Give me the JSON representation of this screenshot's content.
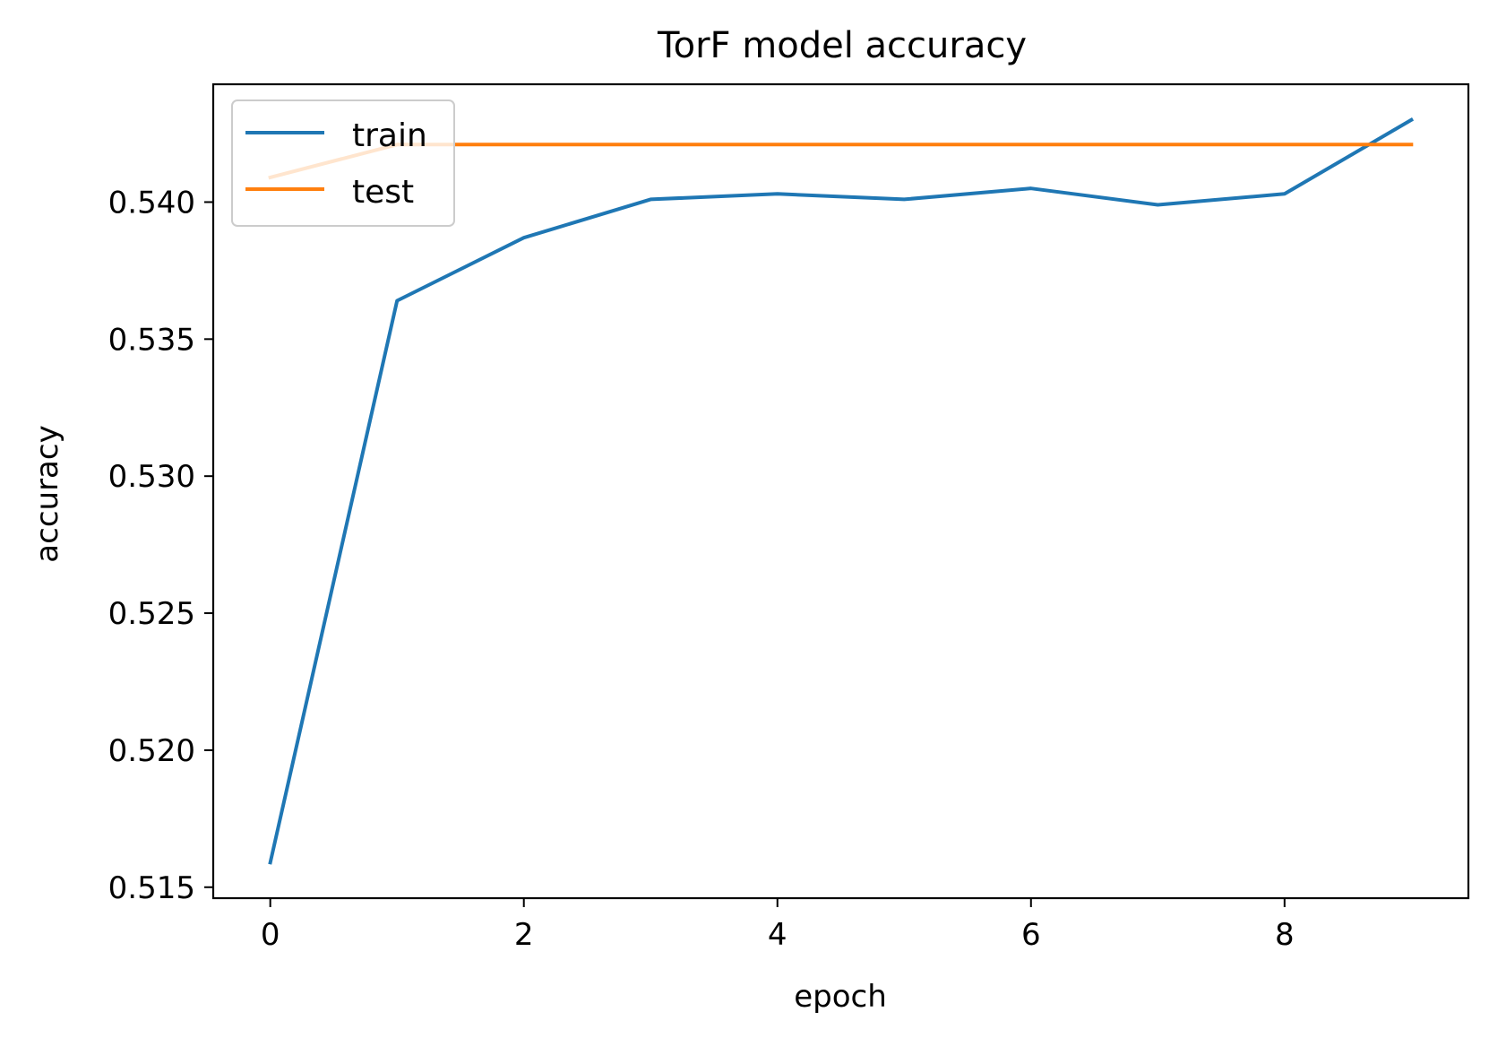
{
  "chart_data": {
    "type": "line",
    "title": "TorF model accuracy",
    "xlabel": "epoch",
    "ylabel": "accuracy",
    "x": [
      0,
      1,
      2,
      3,
      4,
      5,
      6,
      7,
      8,
      9
    ],
    "xlim": [
      -0.45,
      9.45
    ],
    "ylim": [
      0.5146,
      0.5443
    ],
    "xticks": [
      0,
      2,
      4,
      6,
      8
    ],
    "xtick_labels": [
      "0",
      "2",
      "4",
      "6",
      "8"
    ],
    "yticks": [
      0.515,
      0.52,
      0.525,
      0.53,
      0.535,
      0.54
    ],
    "ytick_labels": [
      "0.515",
      "0.520",
      "0.525",
      "0.530",
      "0.535",
      "0.540"
    ],
    "grid": false,
    "legend_position": "upper-left",
    "series": [
      {
        "name": "train",
        "color": "#1f77b4",
        "values": [
          0.5159,
          0.5364,
          0.5387,
          0.5401,
          0.5403,
          0.5401,
          0.5405,
          0.5399,
          0.5403,
          0.543
        ]
      },
      {
        "name": "test",
        "color": "#ff7f0e",
        "values": [
          0.5409,
          0.5421,
          0.5421,
          0.5421,
          0.5421,
          0.5421,
          0.5421,
          0.5421,
          0.5421,
          0.5421
        ]
      }
    ]
  }
}
